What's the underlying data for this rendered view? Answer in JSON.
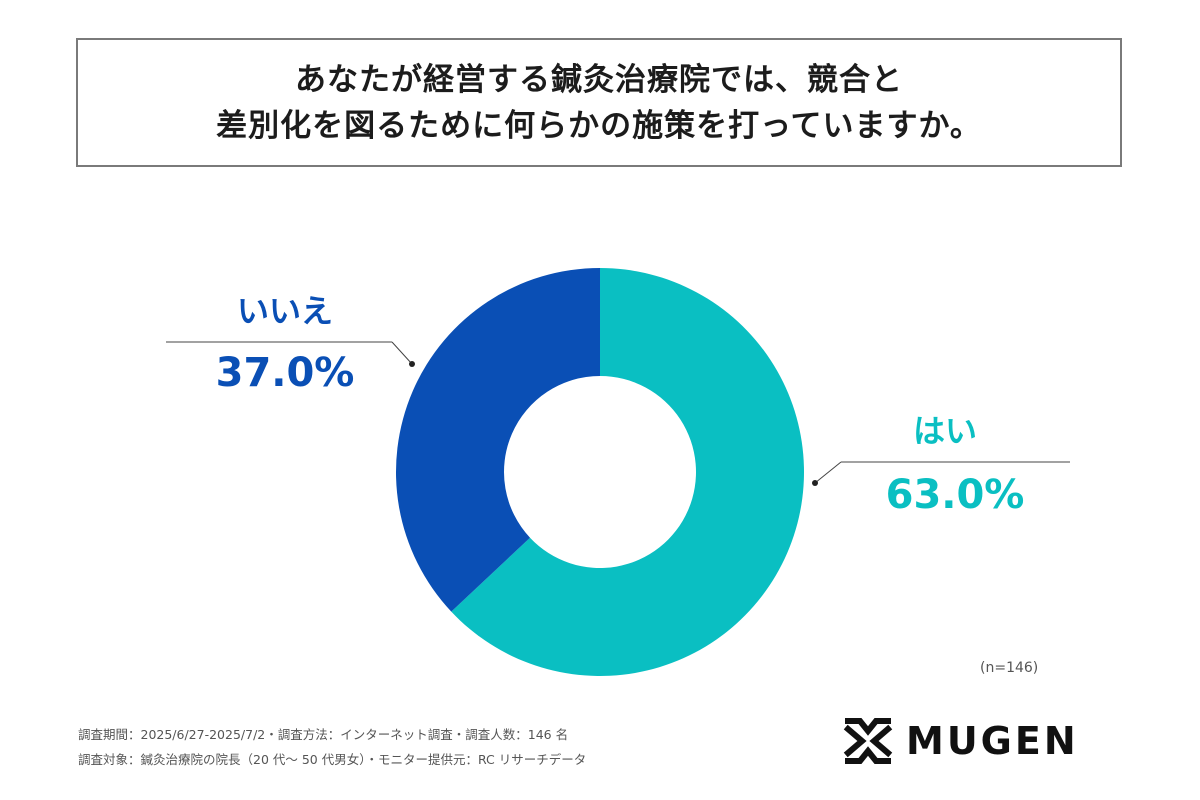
{
  "title": {
    "line1": "あなたが経営する鍼灸治療院では、競合と",
    "line2": "差別化を図るために何らかの施策を打っていますか。"
  },
  "chart_data": {
    "type": "pie",
    "variant": "donut",
    "slices": [
      {
        "label": "はい",
        "value": 63.0,
        "display": "63.0%",
        "color": "#0ABFC2"
      },
      {
        "label": "いいえ",
        "value": 37.0,
        "display": "37.0%",
        "color": "#0A4FB5"
      }
    ],
    "start": "12 o'clock, clockwise"
  },
  "n_label": "(n=146)",
  "footer": {
    "line1": "調査期間：2025/6/27-2025/7/2・調査方法：インターネット調査・調査人数：146 名",
    "line2": "調査対象：鍼灸治療院の院長（20 代〜 50 代男女）・モニター提供元：RC リサーチデータ"
  },
  "logo": {
    "text": "MUGEN"
  }
}
